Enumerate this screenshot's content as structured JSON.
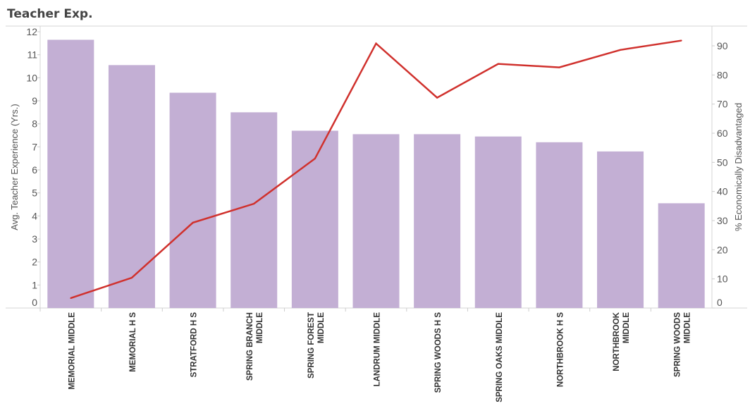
{
  "chart_data": {
    "type": "bar",
    "title": "Teacher Exp.",
    "categories": [
      "MEMORIAL MIDDLE",
      "MEMORIAL H S",
      "STRATFORD H S",
      "SPRING BRANCH MIDDLE",
      "SPRING FOREST MIDDLE",
      "LANDRUM MIDDLE",
      "SPRING WOODS H S",
      "SPRING OAKS MIDDLE",
      "NORTHBROOK H S",
      "NORTHBROOK MIDDLE",
      "SPRING WOODS MIDDLE"
    ],
    "category_lines": [
      [
        "MEMORIAL MIDDLE"
      ],
      [
        "MEMORIAL H S"
      ],
      [
        "STRATFORD H S"
      ],
      [
        "SPRING BRANCH",
        "MIDDLE"
      ],
      [
        "SPRING FOREST",
        "MIDDLE"
      ],
      [
        "LANDRUM MIDDLE"
      ],
      [
        "SPRING WOODS H S"
      ],
      [
        "SPRING OAKS MIDDLE"
      ],
      [
        "NORTHBROOK H S"
      ],
      [
        "NORTHBROOK",
        "MIDDLE"
      ],
      [
        "SPRING WOODS",
        "MIDDLE"
      ]
    ],
    "series": [
      {
        "name": "Avg. Teacher Experience (Yrs.)",
        "type": "bar",
        "axis": "left",
        "color": "#c3afd4",
        "values": [
          11.65,
          10.55,
          9.35,
          8.5,
          7.7,
          7.55,
          7.55,
          7.45,
          7.2,
          6.8,
          4.55
        ]
      },
      {
        "name": "% Economically Disadvantaged",
        "type": "line",
        "axis": "right",
        "color": "#d0312d",
        "values": [
          3.4,
          10.4,
          29.3,
          35.8,
          51.3,
          90.8,
          72.2,
          83.8,
          82.6,
          88.6,
          91.8
        ]
      }
    ],
    "ylabel": "Avg. Teacher Experience (Yrs.)",
    "ylim": [
      0,
      12
    ],
    "yticks": [
      0,
      1,
      2,
      3,
      4,
      5,
      6,
      7,
      8,
      9,
      10,
      11,
      12
    ],
    "y2label": "% Economically Disadvantaged",
    "y2lim": [
      0,
      90
    ],
    "y2ticks": [
      0,
      10,
      20,
      30,
      40,
      50,
      60,
      70,
      80,
      90
    ],
    "xlabel": "",
    "grid": false,
    "legend": "none"
  }
}
